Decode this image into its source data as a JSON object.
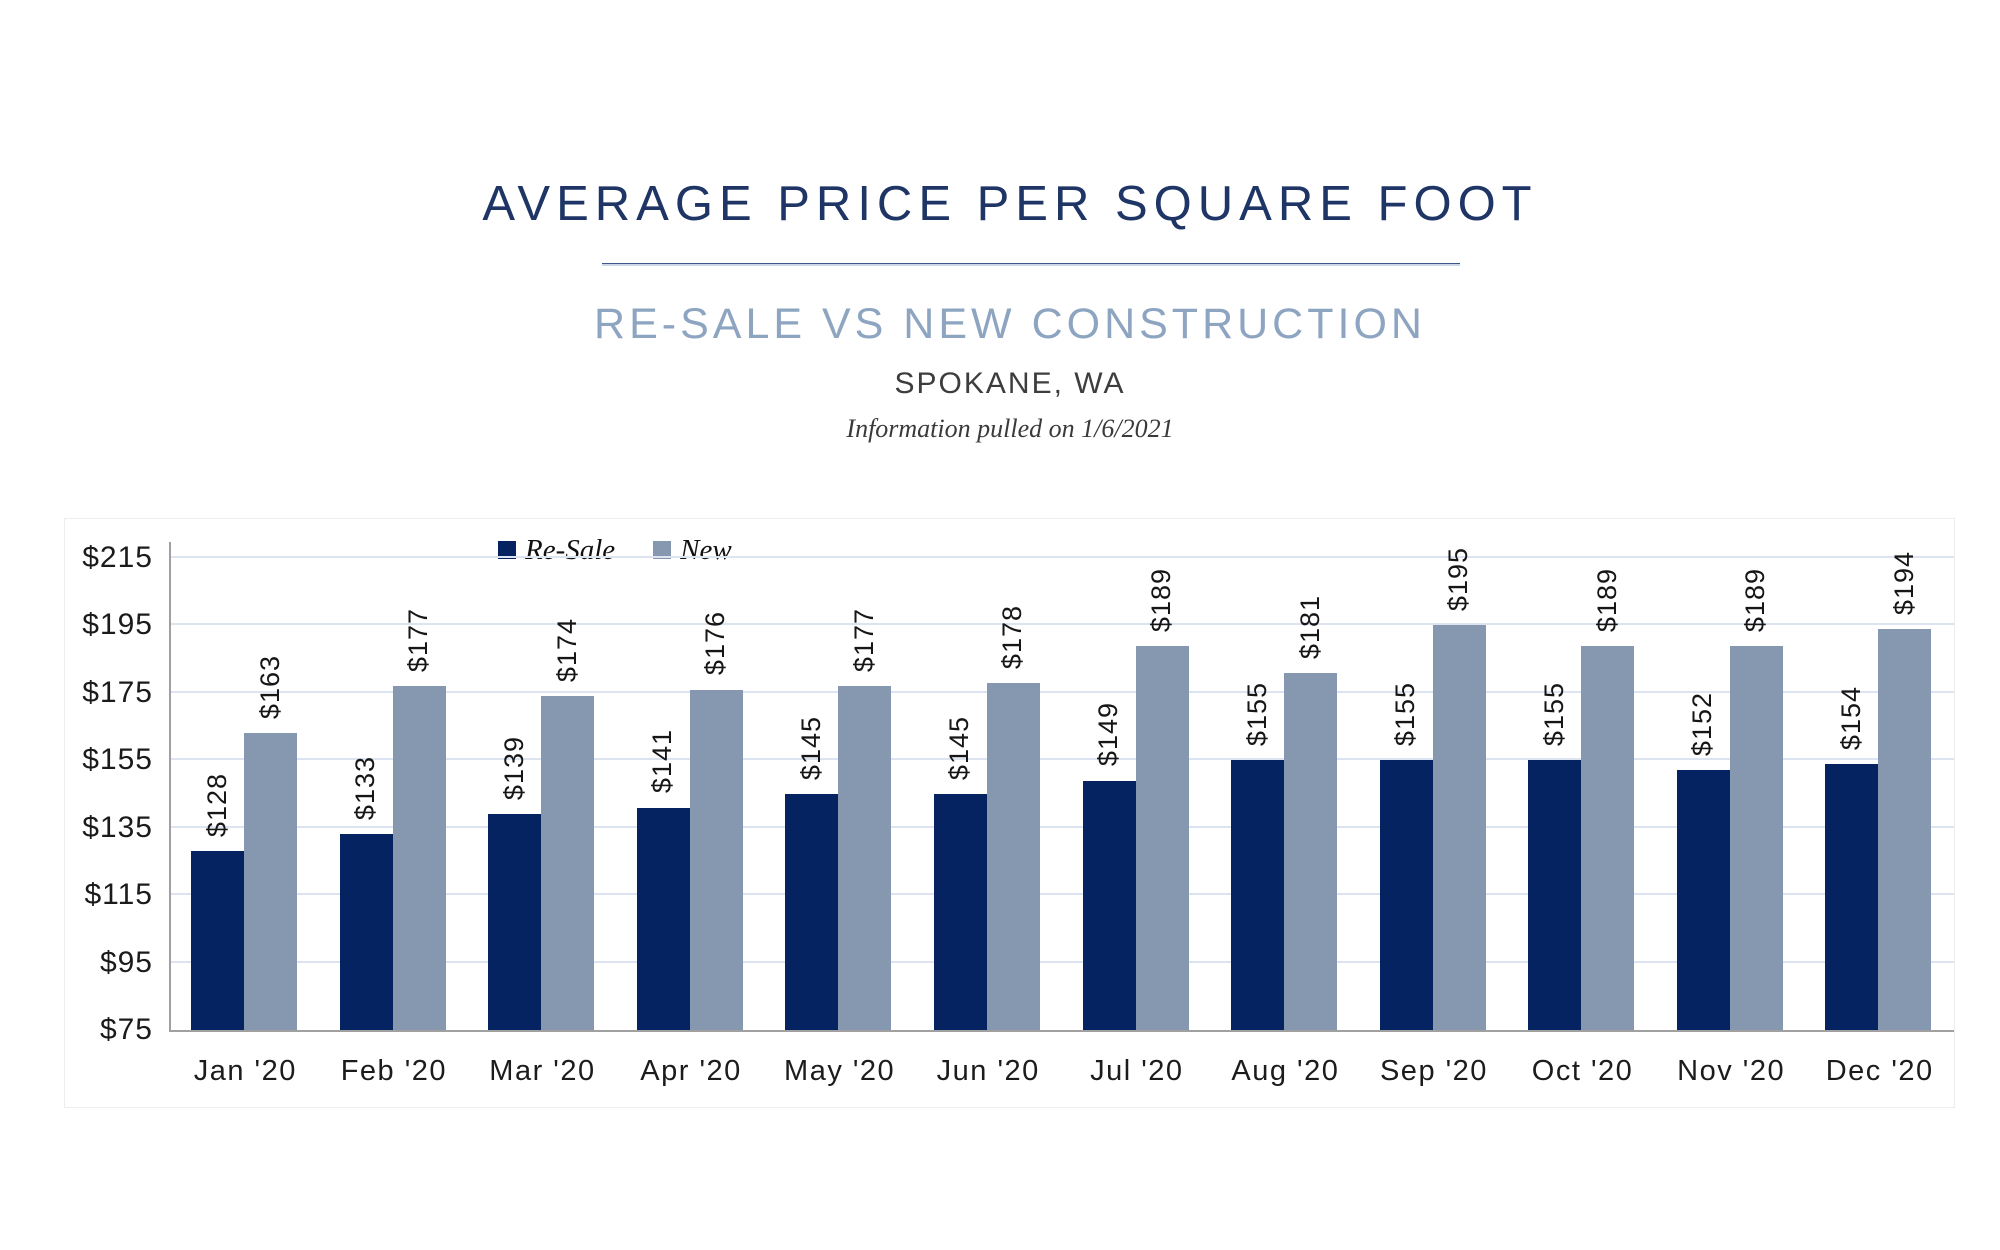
{
  "header": {
    "title": "AVERAGE PRICE PER SQUARE FOOT",
    "subtitle": "RE-SALE VS NEW CONSTRUCTION",
    "location": "SPOKANE, WA",
    "note": "Information pulled on 1/6/2021"
  },
  "colors": {
    "resale_bar": "#052361",
    "new_bar": "#8698af",
    "title_text": "#1e3565",
    "subtitle_text": "#8ea5c1",
    "gridline": "#dde4f1",
    "axis_line": "#a0a0a0",
    "label_text": "#161616"
  },
  "chart_data": {
    "type": "bar",
    "title": "Average Price Per Square Foot — Re-Sale vs New Construction, Spokane, WA",
    "categories": [
      "Jan '20",
      "Feb '20",
      "Mar '20",
      "Apr '20",
      "May '20",
      "Jun '20",
      "Jul '20",
      "Aug '20",
      "Sep '20",
      "Oct '20",
      "Nov '20",
      "Dec '20"
    ],
    "series": [
      {
        "name": "Re-Sale",
        "color_key": "resale_bar",
        "values": [
          128,
          133,
          139,
          141,
          145,
          145,
          149,
          155,
          155,
          155,
          152,
          154
        ]
      },
      {
        "name": "New",
        "color_key": "new_bar",
        "values": [
          163,
          177,
          174,
          176,
          177,
          178,
          189,
          181,
          195,
          189,
          189,
          194
        ]
      }
    ],
    "data_label_prefix": "$",
    "y_ticks": [
      {
        "label": "$215",
        "value": 215
      },
      {
        "label": "$195",
        "value": 195
      },
      {
        "label": "$175",
        "value": 175
      },
      {
        "label": "$155",
        "value": 155
      },
      {
        "label": "$135",
        "value": 135
      },
      {
        "label": "$115",
        "value": 115
      },
      {
        "label": "$95",
        "value": 95
      },
      {
        "label": "$75",
        "value": 75
      }
    ],
    "ylim": [
      75,
      215
    ],
    "grid": true,
    "legend_position": "top-inside-left"
  }
}
